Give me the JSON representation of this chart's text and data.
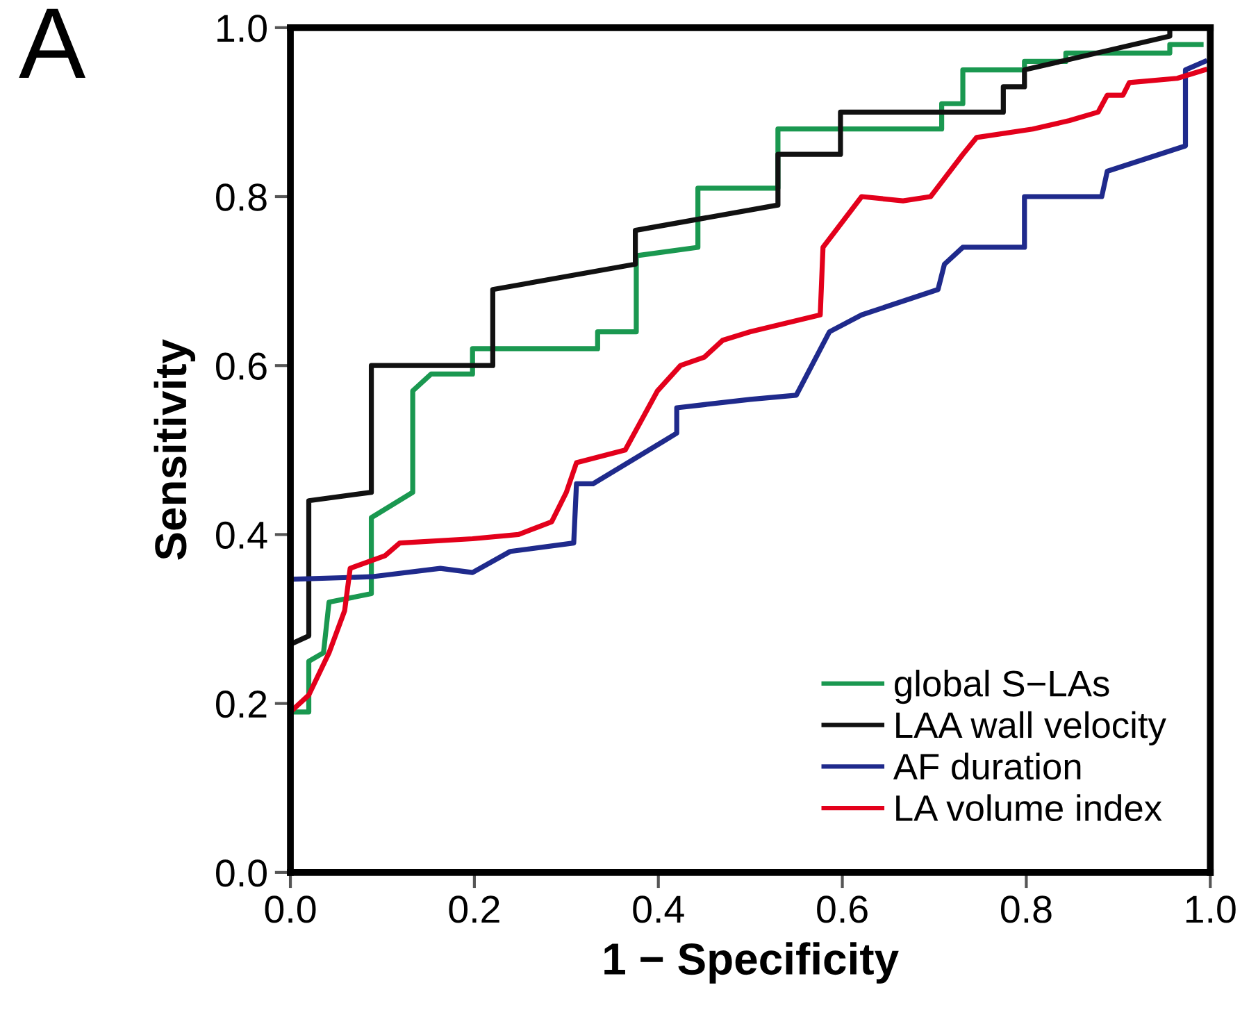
{
  "chart_data": {
    "type": "line",
    "xlabel": "1 − Specificity",
    "ylabel": "Sensitivity",
    "annotations": [
      "A"
    ],
    "xlim": [
      0,
      1
    ],
    "ylim": [
      0,
      1
    ],
    "xticks": [
      {
        "value": 0,
        "label": "0.0"
      },
      0.2,
      0.4,
      0.6,
      0.8,
      {
        "value": 1,
        "label": "1.0"
      }
    ],
    "yticks": [
      {
        "value": 0,
        "label": "0.0"
      },
      0.2,
      0.4,
      0.6,
      0.8,
      {
        "value": 1,
        "label": "1.0"
      }
    ],
    "grid": false,
    "legend": "bottom right",
    "marker": "none",
    "line_style": "solid",
    "series": [
      {
        "name": "global S−LAs",
        "color": "#1a9850",
        "x": [
          0,
          0.02,
          0.02,
          0.036,
          0.042,
          0.088,
          0.088,
          0.133,
          0.133,
          0.153,
          0.198,
          0.198,
          0.334,
          0.334,
          0.376,
          0.376,
          0.443,
          0.443,
          0.53,
          0.53,
          0.708,
          0.708,
          0.731,
          0.731,
          0.798,
          0.798,
          0.843,
          0.843,
          0.956,
          0.956,
          0.99
        ],
        "values": [
          0.19,
          0.19,
          0.25,
          0.26,
          0.32,
          0.33,
          0.42,
          0.45,
          0.57,
          0.59,
          0.59,
          0.62,
          0.62,
          0.64,
          0.64,
          0.73,
          0.74,
          0.81,
          0.81,
          0.88,
          0.88,
          0.91,
          0.91,
          0.95,
          0.95,
          0.96,
          0.96,
          0.97,
          0.97,
          0.98,
          0.98
        ]
      },
      {
        "name": "LAA wall velocity",
        "color": "#111111",
        "x": [
          0,
          0.02,
          0.02,
          0.088,
          0.088,
          0.22,
          0.22,
          0.375,
          0.375,
          0.53,
          0.53,
          0.598,
          0.598,
          0.775,
          0.775,
          0.798,
          0.798,
          0.956,
          0.956,
          1.0
        ],
        "values": [
          0.27,
          0.28,
          0.44,
          0.45,
          0.6,
          0.6,
          0.69,
          0.72,
          0.76,
          0.79,
          0.85,
          0.85,
          0.9,
          0.9,
          0.93,
          0.93,
          0.95,
          0.99,
          1.0,
          1.0
        ]
      },
      {
        "name": "AF duration",
        "color": "#1f2a8c",
        "x": [
          0,
          0.088,
          0.163,
          0.198,
          0.239,
          0.308,
          0.311,
          0.329,
          0.405,
          0.42,
          0.42,
          0.5,
          0.55,
          0.586,
          0.621,
          0.704,
          0.711,
          0.731,
          0.798,
          0.798,
          0.882,
          0.888,
          0.973,
          0.973,
          0.994
        ],
        "values": [
          0.347,
          0.35,
          0.36,
          0.355,
          0.38,
          0.39,
          0.46,
          0.46,
          0.51,
          0.52,
          0.55,
          0.56,
          0.565,
          0.64,
          0.66,
          0.69,
          0.72,
          0.74,
          0.74,
          0.8,
          0.8,
          0.83,
          0.86,
          0.95,
          0.96
        ]
      },
      {
        "name": "LA volume index",
        "color": "#e3001b",
        "x": [
          0,
          0.02,
          0.042,
          0.059,
          0.065,
          0.103,
          0.119,
          0.198,
          0.248,
          0.284,
          0.3,
          0.311,
          0.364,
          0.399,
          0.424,
          0.45,
          0.47,
          0.5,
          0.576,
          0.579,
          0.621,
          0.666,
          0.696,
          0.731,
          0.746,
          0.807,
          0.847,
          0.878,
          0.888,
          0.905,
          0.912,
          0.964,
          0.994
        ],
        "values": [
          0.19,
          0.21,
          0.26,
          0.31,
          0.36,
          0.375,
          0.39,
          0.395,
          0.4,
          0.415,
          0.45,
          0.485,
          0.5,
          0.57,
          0.6,
          0.61,
          0.63,
          0.64,
          0.66,
          0.74,
          0.8,
          0.795,
          0.8,
          0.85,
          0.87,
          0.88,
          0.89,
          0.9,
          0.92,
          0.92,
          0.935,
          0.94,
          0.95
        ]
      }
    ]
  }
}
